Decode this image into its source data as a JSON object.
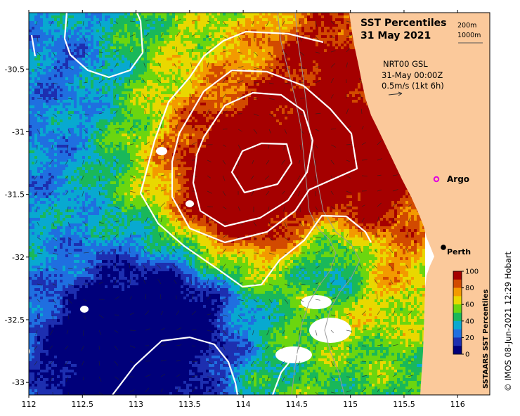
{
  "title": "SST Percentiles",
  "date": "31 May 2021",
  "contour_legend": {
    "shallow": "200m",
    "deep": "1000m"
  },
  "currents_info": {
    "line1": "NRT00 GSL",
    "line2": "31-May 00:00Z",
    "line3": "0.5m/s (1kt 6h)"
  },
  "places": {
    "argo": "Argo",
    "perth": "Perth"
  },
  "colorbar": {
    "title": "SSTAARS SST Percentiles",
    "ticks": [
      "100",
      "80",
      "60",
      "40",
      "20",
      "0"
    ],
    "colors": [
      "#a50000",
      "#d24a00",
      "#f39a00",
      "#e9d800",
      "#6bd60f",
      "#19b85a",
      "#08a9d0",
      "#1f6fe0",
      "#1d2fb0",
      "#00007a"
    ]
  },
  "axes": {
    "lon_ticks": [
      "112",
      "112.5",
      "113",
      "113.5",
      "114",
      "114.5",
      "115",
      "115.5",
      "116"
    ],
    "lat_ticks": [
      "-30.5",
      "-31",
      "-31.5",
      "-32",
      "-32.5",
      "-33"
    ],
    "lon_range": [
      112,
      116.3
    ],
    "lat_range": [
      -33.1,
      -30.05
    ]
  },
  "colors": {
    "land": "#fbc99b",
    "contour": "#ffffff",
    "argo": "#e000e0"
  },
  "credit": "© IMOS 08-Jun-2021 12:29 Hobart"
}
